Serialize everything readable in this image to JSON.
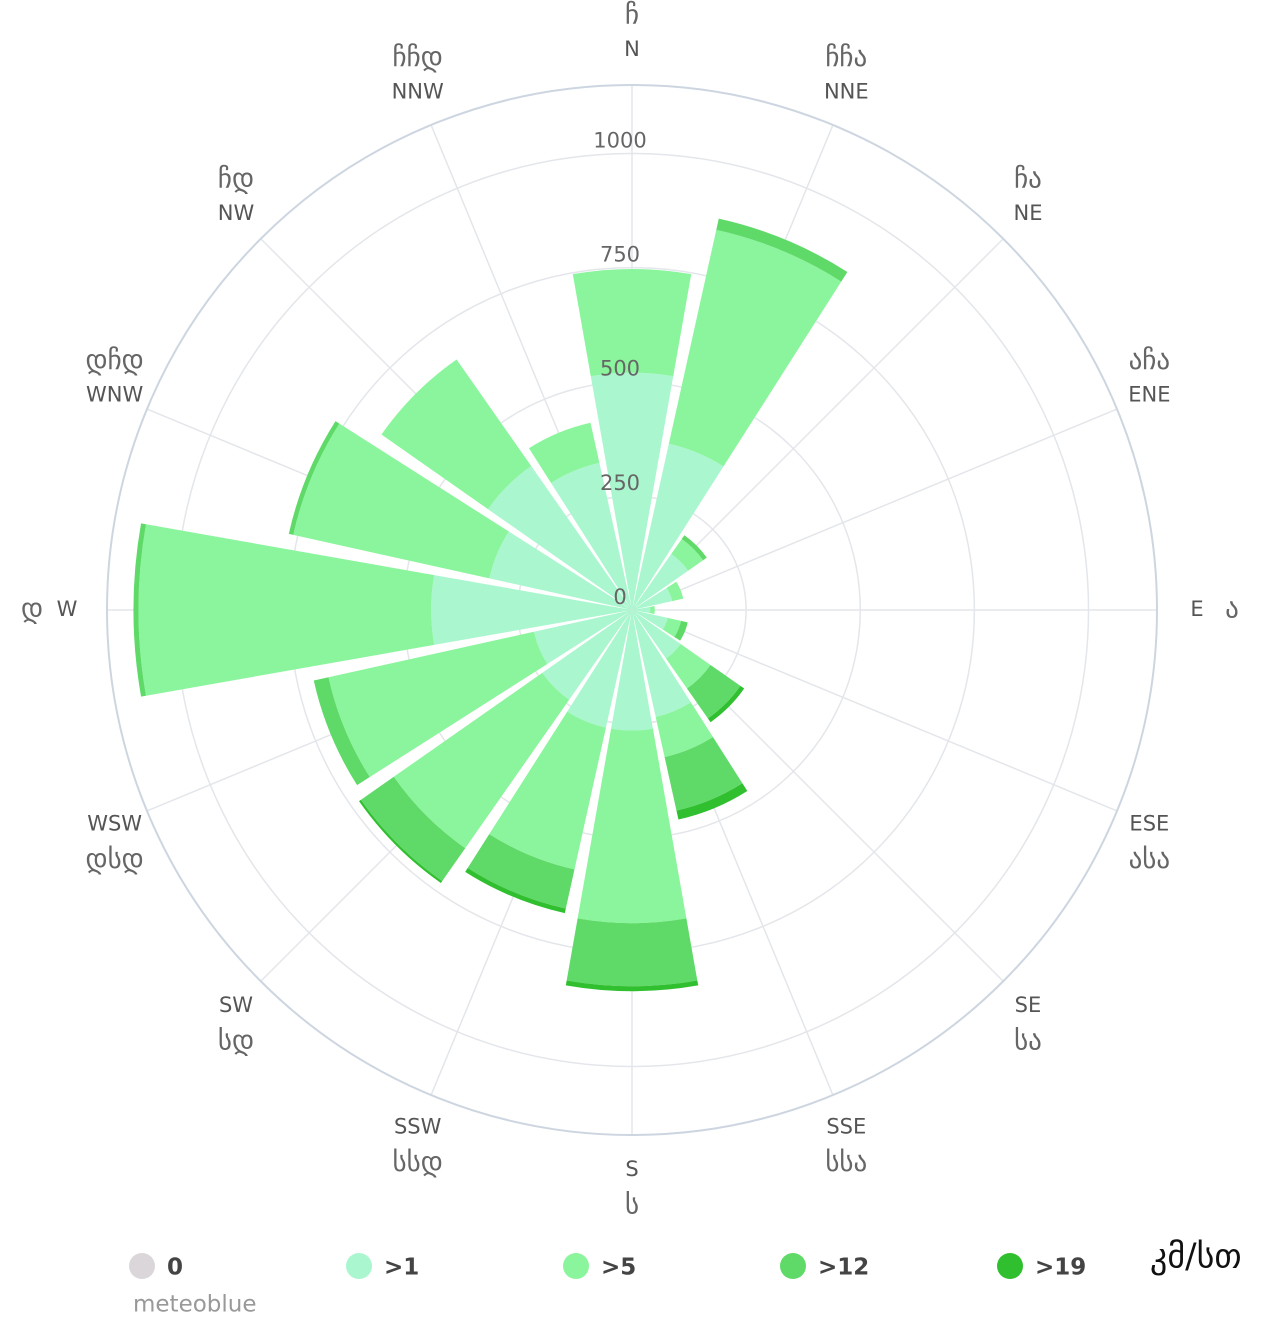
{
  "chart_data": {
    "type": "windrose",
    "directions": [
      "N",
      "NNE",
      "NE",
      "ENE",
      "E",
      "ESE",
      "SE",
      "SSE",
      "S",
      "SSW",
      "SW",
      "WSW",
      "W",
      "WNW",
      "NW",
      "NNW"
    ],
    "directions_local": [
      "ჩ",
      "ჩჩა",
      "ჩა",
      "აჩა",
      "ა",
      "ასა",
      "სა",
      "სსა",
      "ს",
      "სსდ",
      "სდ",
      "დსდ",
      "დ",
      "დჩდ",
      "ჩდ",
      "ჩჩდ"
    ],
    "series": [
      {
        "name": "0",
        "color": "#dad6da",
        "values": [
          0,
          0,
          0,
          0,
          0,
          0,
          0,
          0,
          0,
          0,
          0,
          0,
          0,
          0,
          0,
          0
        ]
      },
      {
        "name": ">1",
        "color": "#aaf6cf",
        "values": [
          520,
          373,
          150,
          90,
          40,
          80,
          130,
          240,
          264,
          264,
          240,
          220,
          440,
          320,
          385,
          330
        ]
      },
      {
        "name": ">5",
        "color": "#8af59c",
        "values": [
          227,
          480,
          40,
          25,
          10,
          30,
          80,
          90,
          422,
          318,
          397,
          461,
          641,
          440,
          285,
          90
        ]
      },
      {
        "name": ">12",
        "color": "#5fda68",
        "values": [
          0,
          25,
          10,
          0,
          0,
          15,
          80,
          120,
          138,
          88,
          88,
          33,
          11,
          10,
          0,
          0
        ]
      },
      {
        "name": ">19",
        "color": "#2fbf2f",
        "values": [
          0,
          0,
          0,
          0,
          0,
          0,
          10,
          20,
          11,
          10,
          5,
          0,
          0,
          0,
          0,
          0
        ]
      }
    ],
    "ylim": [
      0,
      1150
    ],
    "yticks": [
      0,
      250,
      500,
      750,
      1000
    ],
    "grid": true,
    "unit": "კმ/სთ",
    "credit": "meteoblue"
  }
}
